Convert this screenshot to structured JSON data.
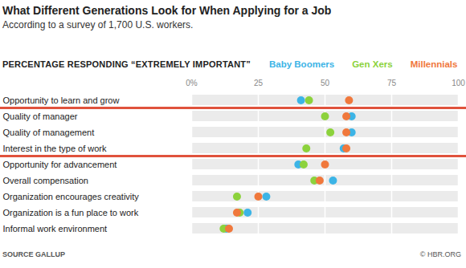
{
  "chart_data": {
    "type": "dot",
    "orientation": "horizontal",
    "title": "What Different Generations Look for When Applying for a Job",
    "subtitle": "According to a survey of 1,700 U.S. workers.",
    "xlabel": "PERCENTAGE RESPONDING “EXTREMELY IMPORTANT”",
    "source": "SOURCE GALLUP",
    "credit": "© HBR.ORG",
    "categories": [
      "Opportunity to learn and grow",
      "Quality of manager",
      "Quality of management",
      "Interest in the type of work",
      "Opportunity for advancement",
      "Overall compensation",
      "Organization encourages creativity",
      "Organization is a fun place to work",
      "Informal work environment"
    ],
    "series": [
      {
        "name": "Baby Boomers",
        "color": "#3cb4e6",
        "marker": "circle",
        "values": [
          41,
          60,
          60,
          57,
          40,
          53,
          28,
          21,
          13
        ]
      },
      {
        "name": "Gen Xers",
        "color": "#8cd23c",
        "marker": "circle",
        "values": [
          44,
          50,
          52,
          43,
          42,
          46,
          17,
          18,
          12
        ]
      },
      {
        "name": "Millennials",
        "color": "#f0783c",
        "marker": "circle",
        "values": [
          59,
          58,
          58,
          58,
          50,
          48,
          25,
          17,
          14
        ]
      }
    ],
    "xlim": [
      0,
      100
    ],
    "xticks": [
      {
        "value": 0,
        "label": "0%"
      },
      25,
      50,
      75,
      100
    ],
    "grid": true,
    "legend": "top"
  }
}
